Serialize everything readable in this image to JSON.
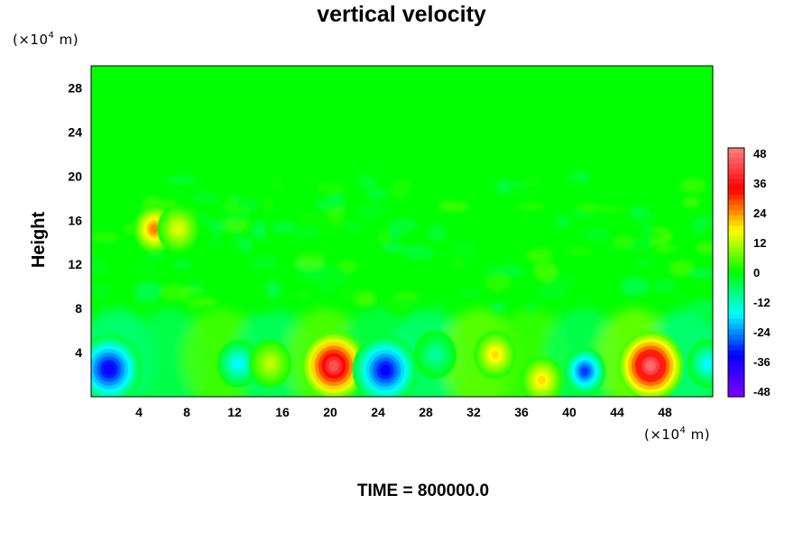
{
  "chart_data": {
    "type": "heatmap",
    "title": "vertical velocity",
    "ylabel": "Height",
    "y_unit": {
      "prefix": "(×10",
      "exp": "4",
      "suffix": " m)"
    },
    "x_unit": {
      "prefix": "(×10",
      "exp": "4",
      "suffix": " m)"
    },
    "xlim": [
      0,
      52
    ],
    "ylim": [
      0,
      30
    ],
    "x_ticks": [
      "4",
      "8",
      "12",
      "16",
      "20",
      "24",
      "28",
      "32",
      "36",
      "40",
      "44",
      "48"
    ],
    "y_ticks": [
      "4",
      "8",
      "12",
      "16",
      "20",
      "24",
      "28"
    ],
    "colorbar": {
      "range": [
        -48,
        48
      ],
      "ticks": [
        "48",
        "36",
        "24",
        "12",
        "0",
        "-12",
        "-24",
        "-36",
        "-48"
      ],
      "colors": [
        "#7f00ff",
        "#0000ff",
        "#00ffff",
        "#00ff00",
        "#ffff00",
        "#ff0000",
        "#ff8080"
      ]
    },
    "background_value": 0,
    "features": [
      {
        "x": 1.5,
        "y": 2.5,
        "value": -34
      },
      {
        "x": 5.3,
        "y": 15.2,
        "value": 24
      },
      {
        "x": 7.3,
        "y": 15.2,
        "value": 14
      },
      {
        "x": 12.3,
        "y": 3.0,
        "value": -16
      },
      {
        "x": 15.0,
        "y": 3.0,
        "value": 12
      },
      {
        "x": 20.3,
        "y": 2.8,
        "value": 42
      },
      {
        "x": 24.6,
        "y": 2.4,
        "value": -33
      },
      {
        "x": 28.8,
        "y": 3.8,
        "value": -10
      },
      {
        "x": 33.8,
        "y": 3.8,
        "value": 18
      },
      {
        "x": 37.7,
        "y": 1.5,
        "value": 18
      },
      {
        "x": 41.3,
        "y": 2.3,
        "value": -28
      },
      {
        "x": 46.8,
        "y": 2.8,
        "value": 45
      },
      {
        "x": 51.6,
        "y": 3.0,
        "value": -16
      }
    ]
  },
  "footer": {
    "time_label": "TIME = 800000.0"
  }
}
